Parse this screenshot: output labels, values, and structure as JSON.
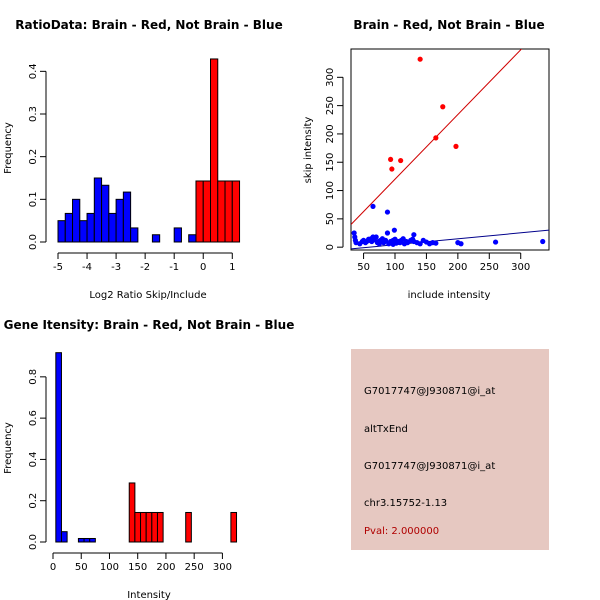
{
  "colors": {
    "brain": "#ff0000",
    "not_brain": "#0000ff",
    "info_bg": "#e6c8c1",
    "pval": "#b00000",
    "fit_brain": "#d00000",
    "fit_not_brain": "#00008b"
  },
  "chart_data": [
    {
      "id": "ratio-histogram",
      "type": "bar",
      "title": "RatioData: Brain - Red, Not Brain - Blue",
      "xlabel": "Log2 Ratio Skip/Include",
      "ylabel": "Frequency",
      "xlim": [
        -5,
        1.3
      ],
      "ylim": [
        0,
        0.45
      ],
      "xticks": [
        -5,
        -4,
        -3,
        -2,
        -1,
        0,
        1
      ],
      "yticks": [
        0.0,
        0.1,
        0.2,
        0.3,
        0.4
      ],
      "bin_width": 0.25,
      "series": [
        {
          "name": "Not Brain",
          "color": "blue",
          "bins": [
            -5.0,
            -4.75,
            -4.5,
            -4.25,
            -4.0,
            -3.75,
            -3.5,
            -3.25,
            -3.0,
            -2.75,
            -2.5,
            -2.25,
            -2.0,
            -1.75,
            -1.5,
            -1.25,
            -1.0,
            -0.75,
            -0.5,
            -0.25,
            0.0,
            0.25
          ],
          "values": [
            0.05,
            0.067,
            0.1,
            0.05,
            0.067,
            0.15,
            0.133,
            0.067,
            0.1,
            0.117,
            0.033,
            0,
            0,
            0.017,
            0,
            0,
            0.033,
            0,
            0.017,
            0,
            0,
            0
          ]
        },
        {
          "name": "Brain",
          "color": "red",
          "bins": [
            -0.25,
            0.0,
            0.25,
            0.5,
            0.75,
            1.0
          ],
          "values": [
            0.143,
            0.143,
            0.429,
            0.143,
            0.143,
            0.143
          ]
        }
      ]
    },
    {
      "id": "intensity-scatter",
      "type": "scatter",
      "title": "Brain - Red, Not Brain - Blue",
      "xlabel": "include intensity",
      "ylabel": "skip intensity",
      "xlim": [
        30,
        345
      ],
      "ylim": [
        -5,
        350
      ],
      "xticks": [
        50,
        100,
        150,
        200,
        250,
        300
      ],
      "yticks": [
        0,
        50,
        100,
        150,
        200,
        250,
        300
      ],
      "series": [
        {
          "name": "Brain",
          "color": "red",
          "x": [
            140,
            95,
            165,
            176,
            197,
            109,
            93
          ],
          "y": [
            332,
            138,
            193,
            248,
            178,
            153,
            155
          ],
          "fit": {
            "x": [
              30,
              345
            ],
            "y": [
              40,
              400
            ]
          }
        },
        {
          "name": "Not Brain",
          "color": "blue",
          "x": [
            35,
            36,
            37,
            38,
            44,
            48,
            50,
            53,
            55,
            58,
            60,
            62,
            63,
            65,
            67,
            70,
            72,
            74,
            75,
            77,
            80,
            82,
            83,
            85,
            88,
            90,
            93,
            95,
            97,
            99,
            100,
            102,
            105,
            108,
            110,
            113,
            115,
            118,
            120,
            125,
            128,
            130,
            135,
            140,
            145,
            150,
            155,
            160,
            165,
            200,
            205,
            260,
            335,
            88,
            65,
            130,
            97
          ],
          "y": [
            25,
            18,
            12,
            8,
            6,
            10,
            12,
            8,
            10,
            14,
            12,
            15,
            10,
            72,
            13,
            18,
            8,
            10,
            6,
            12,
            15,
            8,
            10,
            12,
            62,
            6,
            10,
            8,
            12,
            30,
            14,
            7,
            10,
            8,
            12,
            15,
            6,
            10,
            8,
            12,
            14,
            10,
            8,
            6,
            12,
            9,
            6,
            8,
            7,
            8,
            6,
            9,
            10,
            25,
            18,
            22,
            5
          ],
          "fit": {
            "x": [
              30,
              345
            ],
            "y": [
              -3,
              30
            ]
          }
        }
      ]
    },
    {
      "id": "gene-intensity-histogram",
      "type": "bar",
      "title": "Gene Itensity: Brain - Red, Not Brain - Blue",
      "xlabel": "Intensity",
      "ylabel": "Frequency",
      "xlim": [
        0,
        340
      ],
      "ylim": [
        0,
        0.93
      ],
      "xticks": [
        0,
        50,
        100,
        150,
        200,
        250,
        300
      ],
      "yticks": [
        0.0,
        0.2,
        0.4,
        0.6,
        0.8
      ],
      "bin_width": 10,
      "series": [
        {
          "name": "Not Brain",
          "color": "blue",
          "bins": [
            10,
            20,
            30,
            40,
            50,
            60,
            70,
            80
          ],
          "values": [
            0.917,
            0.05,
            0,
            0,
            0.017,
            0.017,
            0.017,
            0
          ]
        },
        {
          "name": "Brain",
          "color": "red",
          "bins": [
            140,
            150,
            160,
            170,
            180,
            190,
            240,
            320
          ],
          "values": [
            0.286,
            0.143,
            0.143,
            0.143,
            0.143,
            0.143,
            0.143,
            0.143
          ]
        }
      ]
    }
  ],
  "info_panel": {
    "probe_id": "G7017747@J930871@i_at",
    "event_type": "altTxEnd",
    "probe_id_2": "G7017747@J930871@i_at",
    "location": "chr3.15752-1.13",
    "pval": "Pval: 2.000000"
  }
}
